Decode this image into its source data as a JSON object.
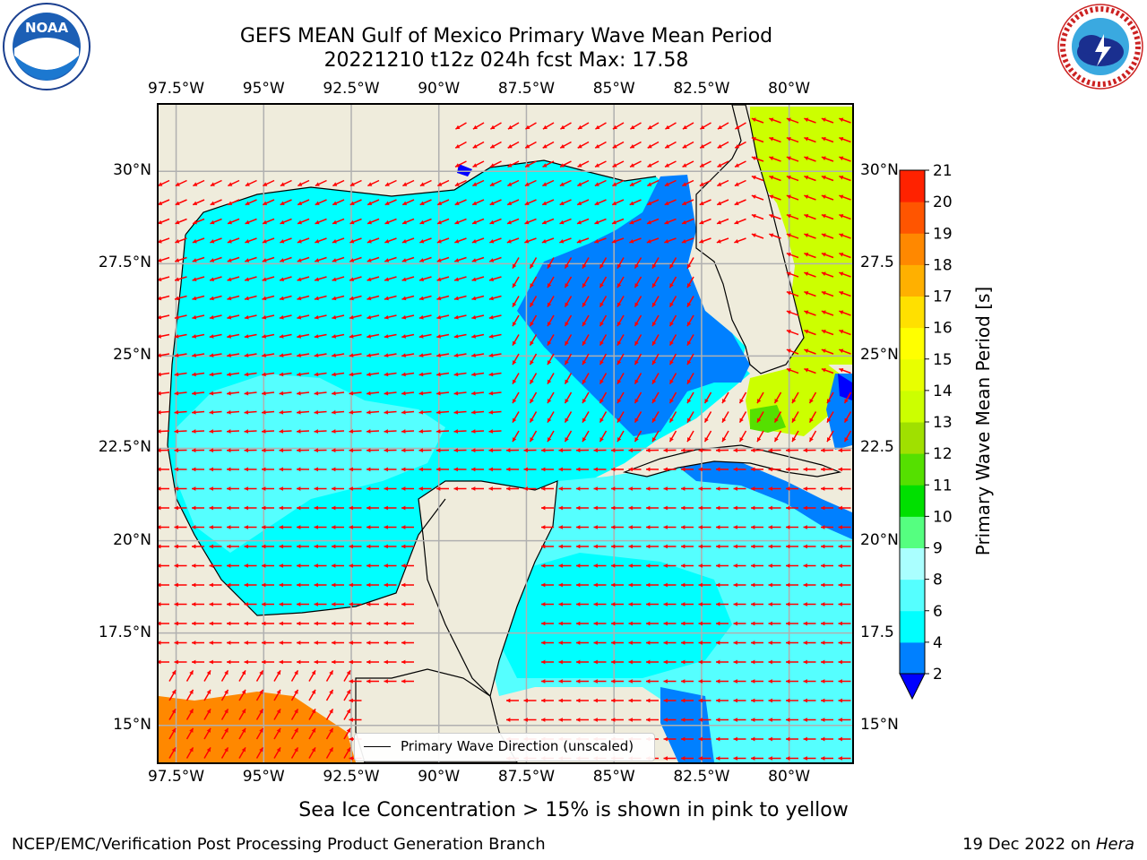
{
  "title": {
    "line1": "GEFS MEAN Gulf of Mexico Primary Wave Mean Period",
    "line2": "20221210 t12z 024h fcst   Max: 17.58"
  },
  "logos": {
    "left": {
      "name": "NOAA",
      "ring_text": "NATIONAL OCEANIC AND ATMOSPHERIC ADMINISTRATION · U.S. DEPARTMENT OF COMMERCE"
    },
    "right": {
      "name": "NATIONAL WEATHER SERVICE"
    }
  },
  "map": {
    "lon_range": [
      -98.0,
      -78.2
    ],
    "lat_range": [
      14.0,
      31.8
    ],
    "lon_ticks": [
      "97.5°W",
      "95°W",
      "92.5°W",
      "90°W",
      "87.5°W",
      "85°W",
      "82.5°W",
      "80°W"
    ],
    "lon_tick_values": [
      -97.5,
      -95,
      -92.5,
      -90,
      -87.5,
      -85,
      -82.5,
      -80
    ],
    "lat_ticks_left": [
      "30°N",
      "27.5°N",
      "25°N",
      "22.5°N",
      "20°N",
      "17.5°N",
      "15°N"
    ],
    "lat_ticks_right": [
      "30°N",
      "27.5",
      "25°N",
      "22.5",
      "20°N",
      "17.5",
      "15°N"
    ],
    "lat_tick_values": [
      30,
      27.5,
      25,
      22.5,
      20,
      17.5,
      15
    ],
    "grid": true,
    "land_color": "#efecdc",
    "arrow_color": "#ff0000",
    "legend_label": "Primary Wave Direction (unscaled)"
  },
  "colorbar": {
    "title": "Primary Wave Mean Period [s]",
    "levels": [
      "2",
      "4",
      "6",
      "8",
      "9",
      "10",
      "11",
      "12",
      "13",
      "14",
      "15",
      "16",
      "17",
      "18",
      "19",
      "20",
      "21"
    ],
    "colors": [
      "#0080ff",
      "#00ffff",
      "#55ffff",
      "#aaffff",
      "#55ff80",
      "#00e000",
      "#55e000",
      "#a0e000",
      "#ccff00",
      "#e8ff00",
      "#ffff00",
      "#ffe000",
      "#ffb000",
      "#ff8800",
      "#ff5500",
      "#ff2200"
    ],
    "under_color": "#0000ff"
  },
  "footer": {
    "left": "NCEP/EMC/Verification Post Processing Product Generation Branch",
    "right_prefix": "19 Dec 2022 on ",
    "right_host": "Hera"
  },
  "caption": "Sea Ice Concentration > 15% is shown in pink to yellow"
}
